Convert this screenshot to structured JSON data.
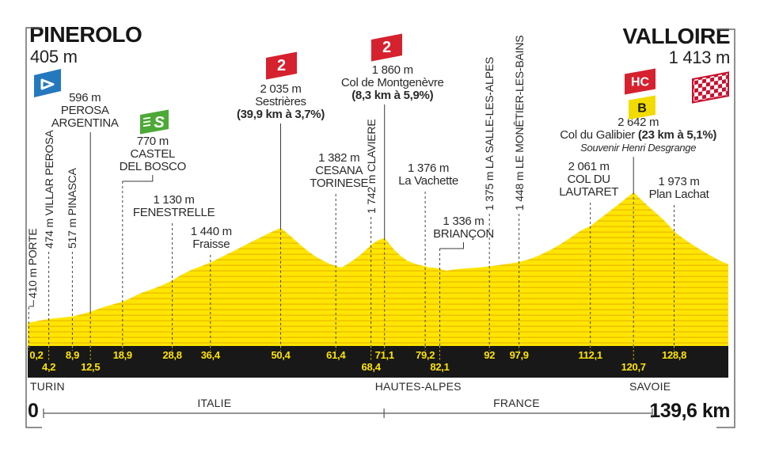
{
  "stage": {
    "start": {
      "name": "PINEROLO",
      "elevation_label": "405 m"
    },
    "finish": {
      "name": "VALLOIRE",
      "elevation_label": "1 413 m"
    },
    "scale_zero": "0",
    "total_distance": "139,6 km"
  },
  "flags": {
    "cat2": "2",
    "sprint": "S",
    "hc": "HC",
    "bonus": "B"
  },
  "colors": {
    "profile_yellow": "#FFE500",
    "profile_stripe": "#EEC400",
    "axis_bar": "#181818",
    "axis_text_yellow": "#FFE400",
    "flag_red": "#D6212F",
    "flag_green": "#4CA937",
    "flag_blue": "#2478BE",
    "flag_bonus_yellow": "#F2DC00",
    "text_dark": "#222222"
  },
  "chart_data": {
    "type": "area",
    "title": "PINEROLO - VALLOIRE",
    "x_unit": "km",
    "y_unit": "m",
    "x_range": [
      0,
      139.6
    ],
    "elev_range": [
      405,
      2642
    ],
    "waypoints": [
      {
        "id": "porte",
        "km": 0.2,
        "elevation_m": 410,
        "label": "410 m PORTE",
        "orientation": "vertical"
      },
      {
        "id": "villar-perosa",
        "km": 4.2,
        "elevation_m": 474,
        "label": "474 m VILLAR PEROSA",
        "orientation": "vertical"
      },
      {
        "id": "pinasca",
        "km": 8.9,
        "elevation_m": 517,
        "label": "517 m PINASCA",
        "orientation": "vertical"
      },
      {
        "id": "perosa-argentina",
        "km": 12.5,
        "elevation_m": 596,
        "orientation": "horizontal",
        "lines": [
          {
            "t": "596 m"
          },
          {
            "t": "PEROSA"
          },
          {
            "t": "ARGENTINA"
          }
        ]
      },
      {
        "id": "castel-del-bosco",
        "km": 18.9,
        "elevation_m": 770,
        "orientation": "horizontal",
        "flag": "sprint",
        "lines": [
          {
            "t": "770 m"
          },
          {
            "t": "CASTEL"
          },
          {
            "t": "DEL BOSCO"
          }
        ]
      },
      {
        "id": "fenestrelle",
        "km": 28.8,
        "elevation_m": 1130,
        "orientation": "horizontal",
        "lines": [
          {
            "t": "1 130 m"
          },
          {
            "t": "FENESTRELLE"
          }
        ]
      },
      {
        "id": "fraisse",
        "km": 36.4,
        "elevation_m": 1440,
        "orientation": "horizontal",
        "lines": [
          {
            "t": "1 440 m"
          },
          {
            "t": "Fraisse"
          }
        ]
      },
      {
        "id": "sestrieres",
        "km": 50.4,
        "elevation_m": 2035,
        "orientation": "horizontal",
        "flag": "cat2",
        "lines": [
          {
            "t": "2 035 m"
          },
          {
            "t": "Sestrières"
          },
          {
            "t": "(39,9 km à 3,7%)",
            "bold": true
          }
        ]
      },
      {
        "id": "cesana-torinese",
        "km": 61.4,
        "elevation_m": 1382,
        "orientation": "horizontal",
        "lines": [
          {
            "t": "1 382 m"
          },
          {
            "t": "CESANA"
          },
          {
            "t": "TORINESE"
          }
        ]
      },
      {
        "id": "claviere",
        "km": 68.4,
        "elevation_m": 1742,
        "label": "1 742 m CLAVIERE",
        "orientation": "vertical"
      },
      {
        "id": "col-de-montgenevre",
        "km": 71.1,
        "elevation_m": 1860,
        "orientation": "horizontal",
        "flag": "cat2",
        "lines": [
          {
            "t": "1 860 m"
          },
          {
            "t": "Col de Montgenèvre"
          },
          {
            "t": "(8,3 km à 5,9%)",
            "bold": true
          }
        ]
      },
      {
        "id": "la-vachette",
        "km": 79.2,
        "elevation_m": 1376,
        "orientation": "horizontal",
        "lines": [
          {
            "t": "1 376 m"
          },
          {
            "t": "La Vachette"
          }
        ]
      },
      {
        "id": "briancon",
        "km": 82.1,
        "elevation_m": 1336,
        "orientation": "horizontal",
        "lines": [
          {
            "t": "1 336 m"
          },
          {
            "t": "BRIANÇON"
          }
        ]
      },
      {
        "id": "la-salle-les-alpes",
        "km": 92,
        "elevation_m": 1375,
        "label": "1 375 m LA SALLE-LES-ALPES",
        "orientation": "vertical"
      },
      {
        "id": "le-monetier-les-bains",
        "km": 97.9,
        "elevation_m": 1448,
        "label": "1 448 m LE MONÊTIER-LES-BAINS",
        "orientation": "vertical"
      },
      {
        "id": "col-du-lautaret",
        "km": 112.1,
        "elevation_m": 2061,
        "orientation": "horizontal",
        "lines": [
          {
            "t": "2 061 m"
          },
          {
            "t": "COL DU"
          },
          {
            "t": "LAUTARET"
          }
        ]
      },
      {
        "id": "col-du-galibier",
        "km": 120.7,
        "elevation_m": 2642,
        "orientation": "horizontal",
        "flag": "hc_bonus",
        "lines": [
          {
            "t": "2 642 m"
          },
          {
            "t": "Col du Galibier ",
            "bold_suffix": "(23 km à 5,1%)"
          },
          {
            "t": "Souvenir Henri Desgrange",
            "italic": true
          }
        ]
      },
      {
        "id": "plan-lachat",
        "km": 128.8,
        "elevation_m": 1973,
        "orientation": "horizontal",
        "lines": [
          {
            "t": "1 973 m"
          },
          {
            "t": "Plan Lachat"
          }
        ]
      }
    ],
    "axis_ticks_row1": [
      {
        "label": "0,2",
        "km": 0.2
      },
      {
        "label": "8,9",
        "km": 8.9
      },
      {
        "label": "18,9",
        "km": 18.9
      },
      {
        "label": "28,8",
        "km": 28.8
      },
      {
        "label": "36,4",
        "km": 36.4
      },
      {
        "label": "50,4",
        "km": 50.4
      },
      {
        "label": "61,4",
        "km": 61.4
      },
      {
        "label": "71,1",
        "km": 71.1
      },
      {
        "label": "79,2",
        "km": 79.2
      },
      {
        "label": "92",
        "km": 92
      },
      {
        "label": "97,9",
        "km": 97.9
      },
      {
        "label": "112,1",
        "km": 112.1
      },
      {
        "label": "128,8",
        "km": 128.8
      }
    ],
    "axis_ticks_row2": [
      {
        "label": "4,2",
        "km": 4.2
      },
      {
        "label": "12,5",
        "km": 12.5
      },
      {
        "label": "68,4",
        "km": 68.4
      },
      {
        "label": "82,1",
        "km": 82.1
      },
      {
        "label": "120,7",
        "km": 120.7
      }
    ],
    "regions": [
      {
        "label": "TURIN",
        "km": 0.5,
        "align": "left"
      },
      {
        "label": "HAUTES-ALPES",
        "km": 77.8,
        "align": "center"
      },
      {
        "label": "SAVOIE",
        "km": 124.0,
        "align": "center"
      }
    ],
    "countries": [
      {
        "label": "ITALIE",
        "km": 37.2
      },
      {
        "label": "FRANCE",
        "km": 97.4
      }
    ],
    "country_border_km": 71,
    "profile_points": [
      [
        0,
        405
      ],
      [
        0.2,
        410
      ],
      [
        2,
        440
      ],
      [
        4.2,
        474
      ],
      [
        6.5,
        495
      ],
      [
        8.9,
        517
      ],
      [
        10.7,
        555
      ],
      [
        12.5,
        596
      ],
      [
        15,
        675
      ],
      [
        17,
        725
      ],
      [
        18.9,
        770
      ],
      [
        20.5,
        830
      ],
      [
        22.5,
        915
      ],
      [
        24.5,
        975
      ],
      [
        26.5,
        1040
      ],
      [
        28.8,
        1130
      ],
      [
        30.5,
        1225
      ],
      [
        32.5,
        1310
      ],
      [
        34.5,
        1375
      ],
      [
        36.4,
        1440
      ],
      [
        38.5,
        1530
      ],
      [
        40.5,
        1615
      ],
      [
        42.5,
        1700
      ],
      [
        44.5,
        1790
      ],
      [
        46.5,
        1875
      ],
      [
        48.5,
        1960
      ],
      [
        50.4,
        2035
      ],
      [
        51.5,
        1955
      ],
      [
        53,
        1845
      ],
      [
        54.5,
        1730
      ],
      [
        56,
        1625
      ],
      [
        57.5,
        1535
      ],
      [
        59,
        1465
      ],
      [
        60.2,
        1415
      ],
      [
        61.4,
        1382
      ],
      [
        62.3,
        1352
      ],
      [
        63,
        1375
      ],
      [
        64,
        1430
      ],
      [
        65.2,
        1500
      ],
      [
        66.4,
        1580
      ],
      [
        67.4,
        1655
      ],
      [
        68.4,
        1742
      ],
      [
        69.5,
        1805
      ],
      [
        70.3,
        1838
      ],
      [
        71.1,
        1860
      ],
      [
        71.9,
        1775
      ],
      [
        73,
        1660
      ],
      [
        74.2,
        1560
      ],
      [
        75.5,
        1480
      ],
      [
        76.8,
        1430
      ],
      [
        78,
        1398
      ],
      [
        79.2,
        1376
      ],
      [
        80,
        1352
      ],
      [
        80.7,
        1358
      ],
      [
        81.4,
        1342
      ],
      [
        82.1,
        1336
      ],
      [
        82.8,
        1312
      ],
      [
        83.6,
        1300
      ],
      [
        84.6,
        1318
      ],
      [
        86,
        1330
      ],
      [
        88,
        1342
      ],
      [
        90,
        1358
      ],
      [
        92,
        1375
      ],
      [
        93.5,
        1392
      ],
      [
        95,
        1410
      ],
      [
        96.5,
        1428
      ],
      [
        97.9,
        1448
      ],
      [
        99.5,
        1485
      ],
      [
        101,
        1530
      ],
      [
        102.5,
        1585
      ],
      [
        104,
        1650
      ],
      [
        105.5,
        1720
      ],
      [
        107,
        1800
      ],
      [
        108.5,
        1885
      ],
      [
        110,
        1975
      ],
      [
        111,
        2020
      ],
      [
        112.1,
        2061
      ],
      [
        113.5,
        2155
      ],
      [
        115,
        2255
      ],
      [
        116.5,
        2355
      ],
      [
        118,
        2455
      ],
      [
        119.5,
        2560
      ],
      [
        120.7,
        2642
      ],
      [
        121.7,
        2560
      ],
      [
        122.8,
        2470
      ],
      [
        124,
        2375
      ],
      [
        125.2,
        2285
      ],
      [
        126.4,
        2195
      ],
      [
        127.6,
        2090
      ],
      [
        128.8,
        1973
      ],
      [
        130,
        1890
      ],
      [
        131.5,
        1800
      ],
      [
        133,
        1715
      ],
      [
        134.5,
        1635
      ],
      [
        136,
        1560
      ],
      [
        137.5,
        1490
      ],
      [
        138.6,
        1445
      ],
      [
        139.6,
        1413
      ]
    ]
  }
}
